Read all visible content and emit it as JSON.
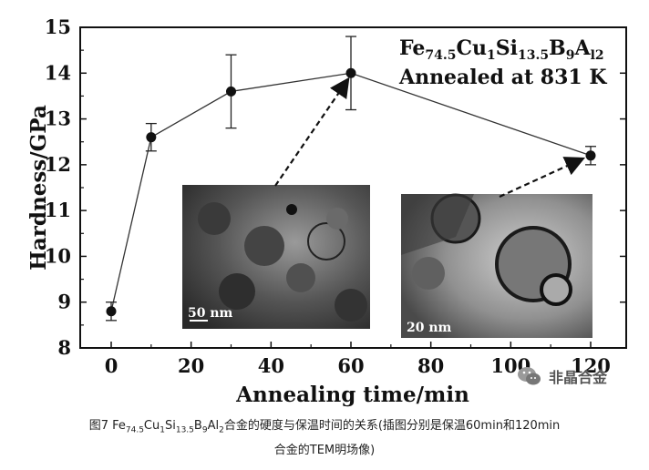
{
  "chart_data": {
    "type": "line",
    "x": [
      0,
      10,
      30,
      60,
      120
    ],
    "values": [
      8.8,
      12.6,
      13.6,
      14.0,
      12.2
    ],
    "errors": [
      0.2,
      0.3,
      0.8,
      0.8,
      0.2
    ],
    "xlabel": "Annealing time/min",
    "ylabel": "Hardness/GPa",
    "xlim": [
      -10,
      125
    ],
    "ylim": [
      8,
      15
    ],
    "xticks": [
      "0",
      "20",
      "40",
      "60",
      "80",
      "100",
      "120"
    ],
    "xtick_values": [
      0,
      20,
      40,
      60,
      80,
      100,
      120
    ],
    "yticks": [
      "8",
      "9",
      "10",
      "11",
      "12",
      "13",
      "14",
      "15"
    ],
    "ytick_values": [
      8,
      9,
      10,
      11,
      12,
      13,
      14,
      15
    ],
    "grid": false,
    "annotation": {
      "composition": [
        {
          "text": "Fe",
          "sub": false
        },
        {
          "text": "74.5",
          "sub": true
        },
        {
          "text": "Cu",
          "sub": false
        },
        {
          "text": "1",
          "sub": true
        },
        {
          "text": "Si",
          "sub": false
        },
        {
          "text": "13.5",
          "sub": true
        },
        {
          "text": "B",
          "sub": false
        },
        {
          "text": "9",
          "sub": true
        },
        {
          "text": "A",
          "sub": false
        },
        {
          "text": "l2",
          "sub": true
        }
      ],
      "condition": "Annealed at 831 K"
    },
    "insets": [
      {
        "scale_bar_label": "50 nm",
        "points_to_x": 60
      },
      {
        "scale_bar_label": "20 nm",
        "points_to_x": 120
      }
    ]
  },
  "watermark": {
    "text": "非晶合金",
    "icon": "wechat-icon"
  },
  "caption": {
    "lines": [
      [
        {
          "text": "图7  Fe",
          "sub": false
        },
        {
          "text": "74.5",
          "sub": true
        },
        {
          "text": "Cu",
          "sub": false
        },
        {
          "text": "1",
          "sub": true
        },
        {
          "text": "Si",
          "sub": false
        },
        {
          "text": "13.5",
          "sub": true
        },
        {
          "text": "B",
          "sub": false
        },
        {
          "text": "9",
          "sub": true
        },
        {
          "text": "Al",
          "sub": false
        },
        {
          "text": "2",
          "sub": true
        },
        {
          "text": "合金的硬度与保温时间的关系(插图分别是保温60min和120min",
          "sub": false
        }
      ],
      [
        {
          "text": "合金的TEM明场像)",
          "sub": false
        }
      ]
    ]
  }
}
